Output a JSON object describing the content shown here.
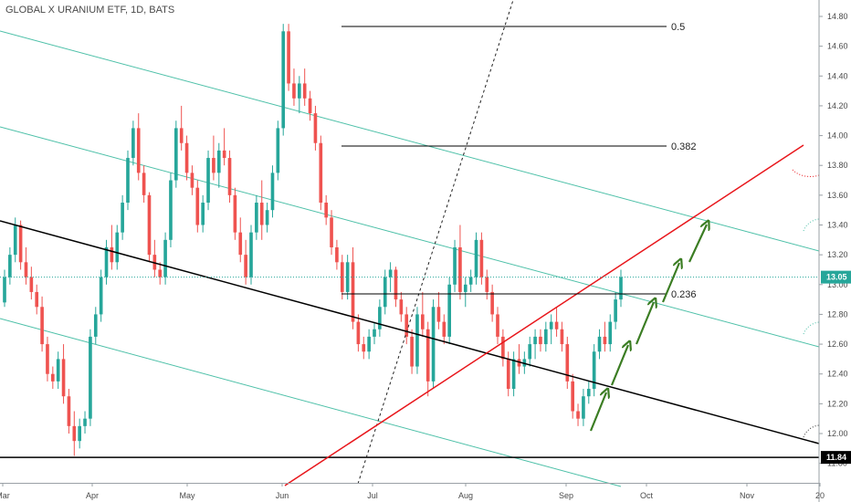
{
  "title": "GLOBAL X URANIUM ETF, 1D, BATS",
  "chart_data": {
    "type": "candlestick",
    "ylim": [
      11.8,
      14.9
    ],
    "y_ticks": [
      "14.80",
      "14.60",
      "14.40",
      "14.20",
      "14.00",
      "13.80",
      "13.60",
      "13.40",
      "13.20",
      "13.00",
      "12.80",
      "12.60",
      "12.40",
      "12.20",
      "12.00",
      "11.80"
    ],
    "x_ticks": [
      "Mar",
      "Apr",
      "May",
      "Jun",
      "Jul",
      "Aug",
      "Sep",
      "Oct",
      "Nov",
      "20"
    ],
    "current_price": "13.05",
    "support_price": "11.84",
    "fib_levels": [
      "0.5",
      "0.382",
      "0.236"
    ],
    "candles": [
      [
        12.88,
        13.1,
        12.85,
        13.05
      ],
      [
        13.05,
        13.25,
        13.0,
        13.2
      ],
      [
        13.2,
        13.45,
        13.15,
        13.4
      ],
      [
        13.4,
        13.43,
        13.1,
        13.15
      ],
      [
        13.15,
        13.25,
        13.0,
        13.05
      ],
      [
        13.05,
        13.12,
        12.9,
        12.95
      ],
      [
        12.95,
        13.0,
        12.8,
        12.85
      ],
      [
        12.85,
        12.92,
        12.55,
        12.6
      ],
      [
        12.6,
        12.65,
        12.35,
        12.4
      ],
      [
        12.4,
        12.45,
        12.3,
        12.35
      ],
      [
        12.35,
        12.55,
        12.3,
        12.5
      ],
      [
        12.5,
        12.6,
        12.2,
        12.25
      ],
      [
        12.25,
        12.3,
        12.0,
        12.05
      ],
      [
        12.05,
        12.15,
        11.85,
        11.95
      ],
      [
        11.95,
        12.1,
        11.9,
        12.05
      ],
      [
        12.05,
        12.15,
        12.0,
        12.1
      ],
      [
        12.1,
        12.7,
        12.05,
        12.65
      ],
      [
        12.65,
        12.85,
        12.6,
        12.8
      ],
      [
        12.8,
        13.1,
        12.75,
        13.05
      ],
      [
        13.05,
        13.3,
        13.0,
        13.25
      ],
      [
        13.25,
        13.4,
        13.1,
        13.15
      ],
      [
        13.15,
        13.4,
        13.1,
        13.35
      ],
      [
        13.35,
        13.6,
        13.3,
        13.55
      ],
      [
        13.55,
        13.9,
        13.5,
        13.85
      ],
      [
        13.85,
        14.1,
        13.8,
        14.05
      ],
      [
        14.05,
        14.15,
        13.7,
        13.75
      ],
      [
        13.75,
        13.8,
        13.55,
        13.6
      ],
      [
        13.6,
        13.62,
        13.15,
        13.2
      ],
      [
        13.2,
        13.3,
        13.05,
        13.1
      ],
      [
        13.1,
        13.15,
        13.0,
        13.05
      ],
      [
        13.05,
        13.35,
        13.0,
        13.3
      ],
      [
        13.3,
        13.75,
        13.25,
        13.7
      ],
      [
        13.7,
        14.1,
        13.65,
        14.05
      ],
      [
        14.05,
        14.2,
        13.9,
        13.95
      ],
      [
        13.95,
        14.0,
        13.7,
        13.75
      ],
      [
        13.75,
        13.8,
        13.6,
        13.65
      ],
      [
        13.65,
        13.7,
        13.35,
        13.4
      ],
      [
        13.4,
        13.6,
        13.35,
        13.55
      ],
      [
        13.55,
        13.9,
        13.5,
        13.85
      ],
      [
        13.85,
        14.0,
        13.7,
        13.75
      ],
      [
        13.75,
        13.95,
        13.65,
        13.9
      ],
      [
        13.9,
        14.05,
        13.8,
        13.85
      ],
      [
        13.85,
        13.9,
        13.55,
        13.6
      ],
      [
        13.6,
        13.65,
        13.3,
        13.35
      ],
      [
        13.35,
        13.45,
        13.15,
        13.2
      ],
      [
        13.2,
        13.3,
        13.0,
        13.05
      ],
      [
        13.05,
        13.4,
        13.0,
        13.35
      ],
      [
        13.35,
        13.6,
        13.3,
        13.55
      ],
      [
        13.55,
        13.7,
        13.3,
        13.4
      ],
      [
        13.4,
        13.55,
        13.35,
        13.5
      ],
      [
        13.5,
        13.8,
        13.45,
        13.75
      ],
      [
        13.75,
        14.1,
        13.7,
        14.05
      ],
      [
        14.05,
        14.75,
        14.0,
        14.7
      ],
      [
        14.7,
        14.75,
        14.3,
        14.35
      ],
      [
        14.35,
        14.45,
        14.2,
        14.25
      ],
      [
        14.25,
        14.4,
        14.15,
        14.35
      ],
      [
        14.35,
        14.45,
        14.2,
        14.25
      ],
      [
        14.25,
        14.3,
        14.1,
        14.15
      ],
      [
        14.15,
        14.2,
        13.9,
        13.95
      ],
      [
        13.95,
        14.0,
        13.5,
        13.55
      ],
      [
        13.55,
        13.6,
        13.4,
        13.45
      ],
      [
        13.45,
        13.5,
        13.2,
        13.25
      ],
      [
        13.25,
        13.3,
        13.1,
        13.15
      ],
      [
        13.15,
        13.2,
        12.9,
        12.95
      ],
      [
        12.95,
        13.2,
        12.9,
        13.15
      ],
      [
        13.15,
        13.25,
        12.7,
        12.75
      ],
      [
        12.75,
        12.8,
        12.55,
        12.6
      ],
      [
        12.6,
        12.65,
        12.5,
        12.55
      ],
      [
        12.55,
        12.7,
        12.5,
        12.65
      ],
      [
        12.65,
        12.75,
        12.6,
        12.7
      ],
      [
        12.7,
        12.9,
        12.65,
        12.85
      ],
      [
        12.85,
        13.1,
        12.8,
        13.05
      ],
      [
        13.05,
        13.15,
        12.95,
        13.1
      ],
      [
        13.1,
        13.12,
        12.85,
        12.9
      ],
      [
        12.9,
        12.95,
        12.75,
        12.8
      ],
      [
        12.8,
        12.85,
        12.6,
        12.65
      ],
      [
        12.65,
        12.7,
        12.4,
        12.45
      ],
      [
        12.45,
        12.85,
        12.4,
        12.8
      ],
      [
        12.8,
        12.95,
        12.65,
        12.7
      ],
      [
        12.7,
        12.75,
        12.25,
        12.35
      ],
      [
        12.35,
        12.9,
        12.3,
        12.85
      ],
      [
        12.85,
        12.95,
        12.7,
        12.75
      ],
      [
        12.75,
        12.8,
        12.6,
        12.65
      ],
      [
        12.65,
        13.05,
        12.6,
        13.0
      ],
      [
        13.0,
        13.3,
        12.95,
        13.25
      ],
      [
        13.25,
        13.4,
        12.9,
        12.95
      ],
      [
        12.95,
        13.05,
        12.85,
        13.0
      ],
      [
        13.0,
        13.1,
        12.95,
        13.05
      ],
      [
        13.05,
        13.35,
        13.0,
        13.3
      ],
      [
        13.3,
        13.35,
        13.0,
        13.05
      ],
      [
        13.05,
        13.1,
        12.9,
        12.95
      ],
      [
        12.95,
        13.0,
        12.75,
        12.8
      ],
      [
        12.8,
        12.85,
        12.6,
        12.65
      ],
      [
        12.65,
        12.7,
        12.45,
        12.5
      ],
      [
        12.5,
        12.55,
        12.25,
        12.3
      ],
      [
        12.3,
        12.55,
        12.25,
        12.5
      ],
      [
        12.5,
        12.6,
        12.4,
        12.45
      ],
      [
        12.45,
        12.55,
        12.4,
        12.5
      ],
      [
        12.5,
        12.65,
        12.45,
        12.6
      ],
      [
        12.6,
        12.7,
        12.5,
        12.65
      ],
      [
        12.65,
        12.7,
        12.55,
        12.6
      ],
      [
        12.6,
        12.75,
        12.55,
        12.7
      ],
      [
        12.7,
        12.8,
        12.6,
        12.75
      ],
      [
        12.75,
        12.85,
        12.65,
        12.7
      ],
      [
        12.7,
        12.75,
        12.55,
        12.6
      ],
      [
        12.6,
        12.65,
        12.3,
        12.35
      ],
      [
        12.35,
        12.4,
        12.1,
        12.15
      ],
      [
        12.15,
        12.2,
        12.05,
        12.1
      ],
      [
        12.1,
        12.3,
        12.05,
        12.25
      ],
      [
        12.25,
        12.35,
        12.2,
        12.3
      ],
      [
        12.3,
        12.6,
        12.25,
        12.55
      ],
      [
        12.55,
        12.7,
        12.5,
        12.65
      ],
      [
        12.65,
        12.75,
        12.55,
        12.6
      ],
      [
        12.6,
        12.8,
        12.55,
        12.75
      ],
      [
        12.75,
        12.95,
        12.7,
        12.9
      ],
      [
        12.9,
        13.1,
        12.85,
        13.05
      ]
    ]
  },
  "colors": {
    "up": "#26a69a",
    "down": "#ef5350",
    "channel": "#4dc0a8",
    "trend": "#000000",
    "red_line": "#e8161b",
    "arrows": "#3b7d23",
    "price_line": "#26a69a",
    "fib": "#000000"
  }
}
